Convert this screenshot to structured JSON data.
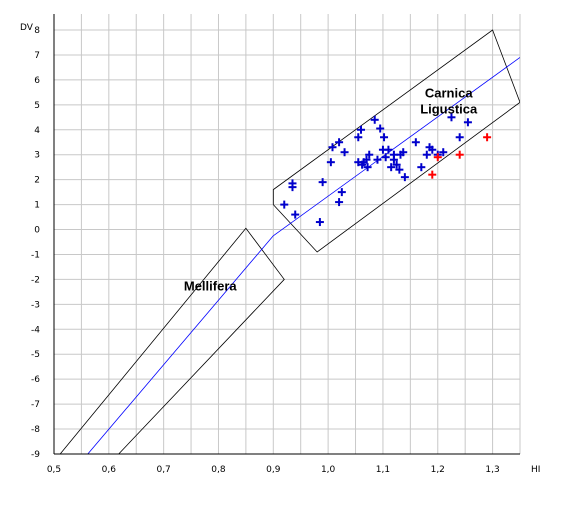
{
  "chart_data": {
    "type": "scatter",
    "xlabel": "HI",
    "ylabel": "DV",
    "xlim": [
      0.5,
      1.35
    ],
    "ylim": [
      -9,
      8
    ],
    "x_ticks": [
      "0,5",
      "0,6",
      "0,7",
      "0,8",
      "0,9",
      "1,0",
      "1,1",
      "1,2",
      "1,3"
    ],
    "y_ticks": [
      "8",
      "7",
      "6",
      "5",
      "4",
      "3",
      "2",
      "1",
      "0",
      "-1",
      "-2",
      "-3",
      "-4",
      "-5",
      "-6",
      "-7",
      "-8",
      "-9"
    ],
    "grid": true,
    "regions": [
      {
        "label_lines": [
          "Carnica",
          "Ligustica"
        ],
        "boundary": [
          [
            0.9,
            1.0
          ],
          [
            0.9,
            1.6
          ],
          [
            1.3,
            8.0
          ],
          [
            1.35,
            5.1
          ],
          [
            0.98,
            -0.9
          ],
          [
            0.9,
            1.0
          ]
        ],
        "center_line": [
          [
            0.9,
            -0.25
          ],
          [
            1.35,
            6.9
          ]
        ]
      },
      {
        "label_lines": [
          "Mellifera"
        ],
        "boundary": [
          [
            0.5,
            -9.3
          ],
          [
            0.85,
            0.05
          ],
          [
            0.92,
            -2.0
          ],
          [
            0.605,
            -9.3
          ]
        ],
        "center_line": [
          [
            0.55,
            -9.3
          ],
          [
            0.9,
            -0.25
          ]
        ]
      }
    ],
    "series": [
      {
        "color": "#0000cc",
        "marker": "+",
        "points": [
          [
            0.92,
            1.0
          ],
          [
            0.935,
            1.7
          ],
          [
            0.935,
            1.85
          ],
          [
            0.94,
            0.6
          ],
          [
            0.985,
            0.3
          ],
          [
            0.99,
            1.9
          ],
          [
            1.005,
            2.7
          ],
          [
            1.008,
            3.3
          ],
          [
            1.02,
            1.1
          ],
          [
            1.02,
            3.5
          ],
          [
            1.025,
            1.5
          ],
          [
            1.03,
            3.1
          ],
          [
            1.055,
            2.7
          ],
          [
            1.055,
            3.7
          ],
          [
            1.06,
            4.0
          ],
          [
            1.062,
            2.6
          ],
          [
            1.065,
            2.7
          ],
          [
            1.07,
            2.8
          ],
          [
            1.072,
            2.5
          ],
          [
            1.075,
            3.0
          ],
          [
            1.085,
            4.4
          ],
          [
            1.09,
            2.8
          ],
          [
            1.095,
            4.05
          ],
          [
            1.1,
            3.2
          ],
          [
            1.102,
            3.7
          ],
          [
            1.105,
            2.9
          ],
          [
            1.11,
            3.2
          ],
          [
            1.115,
            2.5
          ],
          [
            1.12,
            2.8
          ],
          [
            1.12,
            3.0
          ],
          [
            1.125,
            2.6
          ],
          [
            1.13,
            2.4
          ],
          [
            1.132,
            3.0
          ],
          [
            1.137,
            3.1
          ],
          [
            1.14,
            2.1
          ],
          [
            1.16,
            3.5
          ],
          [
            1.17,
            2.5
          ],
          [
            1.18,
            3.0
          ],
          [
            1.185,
            3.3
          ],
          [
            1.19,
            3.2
          ],
          [
            1.2,
            3.0
          ],
          [
            1.21,
            3.1
          ],
          [
            1.225,
            4.5
          ],
          [
            1.24,
            3.7
          ],
          [
            1.255,
            4.3
          ]
        ]
      },
      {
        "color": "#ff0000",
        "marker": "+",
        "points": [
          [
            1.19,
            2.2
          ],
          [
            1.2,
            2.9
          ],
          [
            1.24,
            3.0
          ],
          [
            1.29,
            3.7
          ]
        ]
      }
    ]
  },
  "colors": {
    "grid": "#c8c8c8",
    "axis": "#000000",
    "boundary": "#000000",
    "center_line": "#0000ff"
  }
}
